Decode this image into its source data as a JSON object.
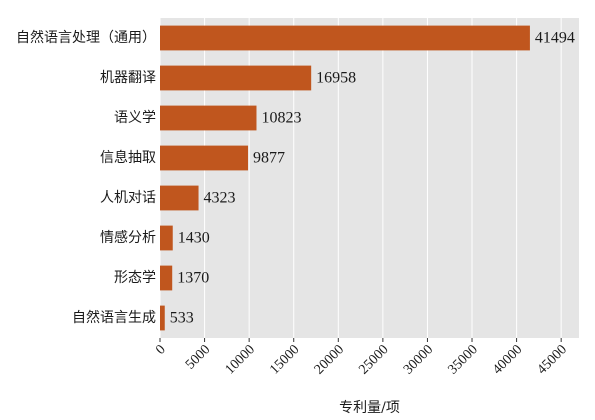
{
  "chart_data": {
    "type": "bar",
    "orientation": "horizontal",
    "categories": [
      "自然语言处理（通用）",
      "机器翻译",
      "语义学",
      "信息抽取",
      "人机对话",
      "情感分析",
      "形态学",
      "自然语言生成"
    ],
    "values": [
      41494,
      16958,
      10823,
      9877,
      4323,
      1430,
      1370,
      533
    ],
    "xlabel": "专利量/项",
    "ylabel": "",
    "xlim": [
      0,
      47000
    ],
    "xticks": [
      0,
      5000,
      10000,
      15000,
      20000,
      25000,
      30000,
      35000,
      40000,
      45000
    ],
    "grid": true,
    "legend": "none",
    "colors": {
      "bar": "#c0561e",
      "plot_background": "#e5e5e5",
      "grid": "#ffffff"
    }
  }
}
